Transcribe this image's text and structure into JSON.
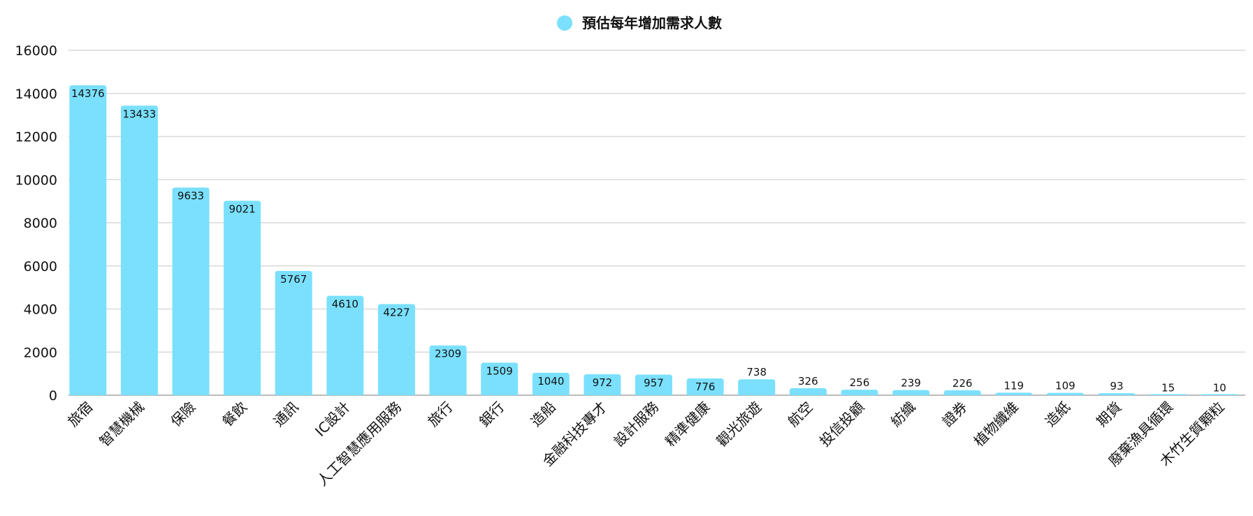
{
  "chart_data": {
    "type": "bar",
    "title": "",
    "xlabel": "",
    "ylabel": "",
    "ylim": [
      0,
      16000
    ],
    "yticks": [
      0,
      2000,
      4000,
      6000,
      8000,
      10000,
      12000,
      14000,
      16000
    ],
    "grid": true,
    "legend_position": "top-center",
    "categories": [
      "旅宿",
      "智慧機械",
      "保險",
      "餐飲",
      "通訊",
      "IC設計",
      "人工智慧應用服務",
      "旅行",
      "銀行",
      "造船",
      "金融科技專才",
      "設計服務",
      "精準健康",
      "觀光旅遊",
      "航空",
      "投信投顧",
      "紡織",
      "證券",
      "植物纖維",
      "造紙",
      "期貨",
      "廢棄漁具循環",
      "木竹生質顆粒"
    ],
    "series": [
      {
        "name": "預估每年增加需求人數",
        "color": "#7ae0fd",
        "values": [
          14376,
          13433,
          9633,
          9021,
          5767,
          4610,
          4227,
          2309,
          1509,
          1040,
          972,
          957,
          776,
          738,
          326,
          256,
          239,
          226,
          119,
          109,
          93,
          15,
          10
        ]
      }
    ]
  }
}
